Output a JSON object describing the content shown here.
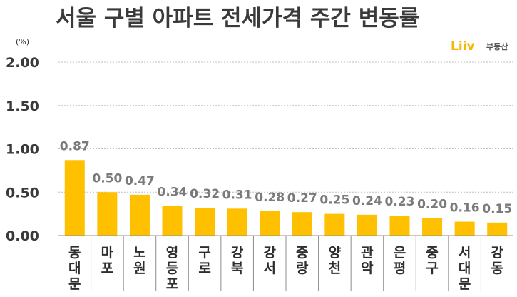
{
  "title": "서울 구별 아파트 전세가격 주간 변동률",
  "unit_label": "(%)",
  "brand": {
    "logo_text": "Liiv",
    "name": "부동산",
    "accent_color": "#f5b700"
  },
  "colors": {
    "bar": "#ffc000",
    "grid": "#bfbfbf",
    "axis": "#8c8c8c"
  },
  "chart_data": {
    "type": "bar",
    "title": "서울 구별 아파트 전세가격 주간 변동률",
    "xlabel": "",
    "ylabel": "(%)",
    "ylim": [
      0,
      2.0
    ],
    "yticks": [
      "0.00",
      "0.50",
      "1.00",
      "1.50",
      "2.00"
    ],
    "grid": true,
    "categories": [
      "동대문",
      "마포",
      "노원",
      "영등포",
      "구로",
      "강북",
      "강서",
      "중랑",
      "양천",
      "관악",
      "은평",
      "중구",
      "서대문",
      "강동"
    ],
    "values": [
      0.87,
      0.5,
      0.47,
      0.34,
      0.32,
      0.31,
      0.28,
      0.27,
      0.25,
      0.24,
      0.23,
      0.2,
      0.16,
      0.15
    ],
    "value_labels": [
      "0.87",
      "0.50",
      "0.47",
      "0.34",
      "0.32",
      "0.31",
      "0.28",
      "0.27",
      "0.25",
      "0.24",
      "0.23",
      "0.20",
      "0.16",
      "0.15"
    ]
  }
}
